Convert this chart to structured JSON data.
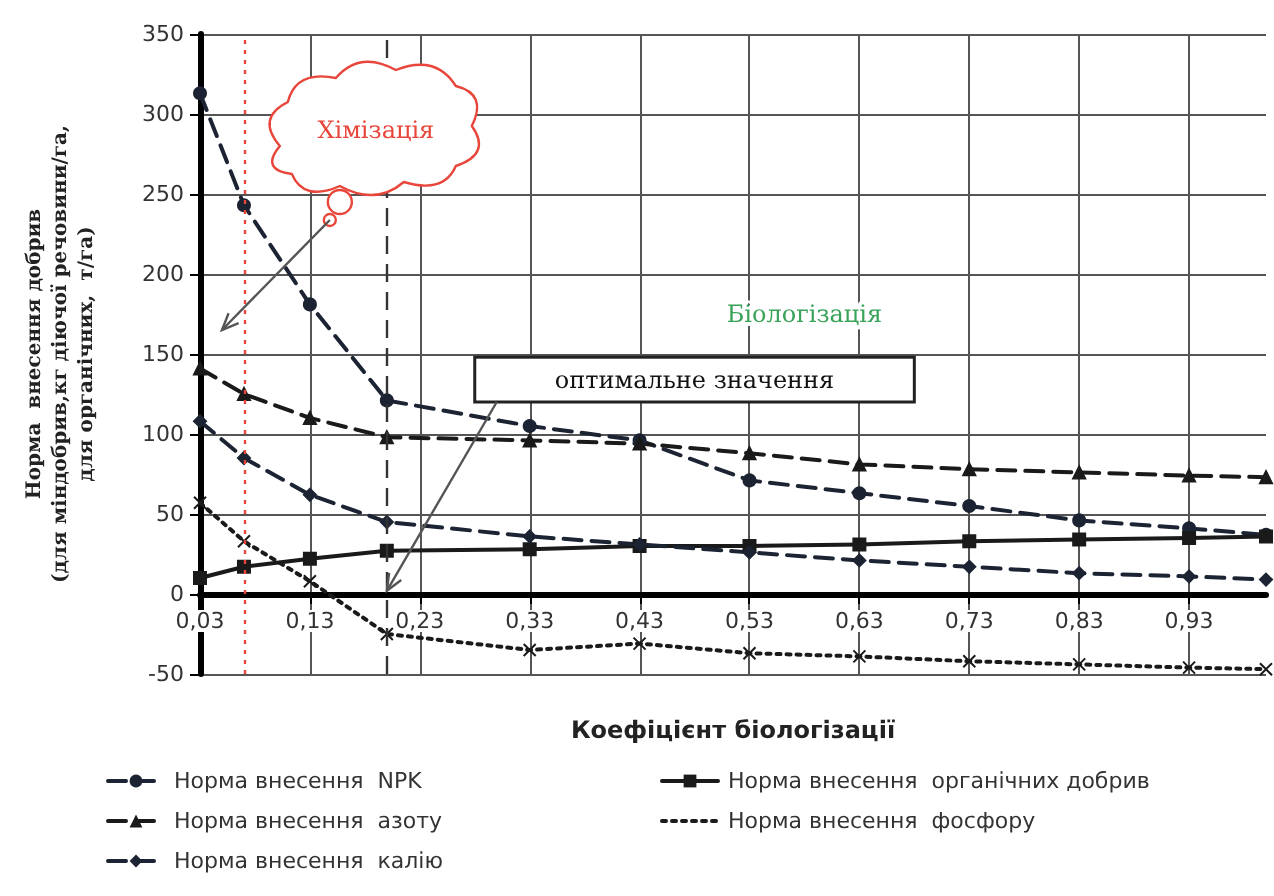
{
  "chart_data": {
    "type": "line",
    "xlabel": "Коефіцієнт біологізації",
    "ylabel": "Норма  внесення добрив\n(для міндобрив,кг діючої речовини/га,\nдля органічних,  т/га)",
    "x": [
      0.03,
      0.07,
      0.13,
      0.2,
      0.33,
      0.43,
      0.53,
      0.63,
      0.73,
      0.83,
      0.93,
      1.0
    ],
    "series": [
      {
        "name": "Норма внесення  NPK",
        "color": "#1c2433",
        "line_style": "dashed",
        "marker": "circle",
        "values": [
          313,
          243,
          181,
          121,
          105,
          96,
          71,
          63,
          55,
          46,
          41,
          37
        ]
      },
      {
        "name": "Норма внесення  органічних добрив",
        "color": "#1a1a1a",
        "line_style": "solid",
        "marker": "square",
        "values": [
          10,
          17,
          22,
          27,
          28,
          30,
          30,
          31,
          33,
          34,
          35,
          36
        ]
      },
      {
        "name": "Норма внесення  азоту",
        "color": "#1a1a1a",
        "line_style": "dashed",
        "marker": "triangle",
        "values": [
          141,
          125,
          110,
          98,
          96,
          94,
          88,
          81,
          78,
          76,
          74,
          73
        ]
      },
      {
        "name": "Норма внесення  фосфору",
        "color": "#1a1a1a",
        "line_style": "dotted",
        "marker": "cross",
        "values": [
          57,
          33,
          8,
          -25,
          -35,
          -31,
          -37,
          -39,
          -42,
          -44,
          -46,
          -47
        ]
      },
      {
        "name": "Норма внесення  калію",
        "color": "#1c2433",
        "line_style": "dashed",
        "marker": "diamond",
        "values": [
          108,
          85,
          62,
          45,
          36,
          31,
          26,
          21,
          17,
          13,
          11,
          9
        ]
      }
    ],
    "xlim": [
      0.03,
      1.0
    ],
    "xticks": [
      {
        "value": 0.03,
        "label": "0,03"
      },
      {
        "value": 0.13,
        "label": "0,13"
      },
      {
        "value": 0.23,
        "label": "0,23"
      },
      {
        "value": 0.33,
        "label": "0,33"
      },
      {
        "value": 0.43,
        "label": "0,43"
      },
      {
        "value": 0.53,
        "label": "0,53"
      },
      {
        "value": 0.63,
        "label": "0,63"
      },
      {
        "value": 0.73,
        "label": "0,73"
      },
      {
        "value": 0.83,
        "label": "0,83"
      },
      {
        "value": 0.93,
        "label": "0,93"
      }
    ],
    "ylim": [
      -50,
      350
    ],
    "yticks": [
      -50,
      0,
      50,
      100,
      150,
      200,
      250,
      300,
      350
    ],
    "ref_lines": [
      {
        "axis": "x",
        "value": 0.07,
        "color": "#e8463a",
        "line_style": "dotted"
      },
      {
        "axis": "x",
        "value": 0.2,
        "color": "#333333",
        "line_style": "dashed"
      }
    ],
    "annotations": [
      "Хімізація",
      "Біологізація",
      "оптимальне значення"
    ],
    "grid": true,
    "legend": "bottom"
  }
}
